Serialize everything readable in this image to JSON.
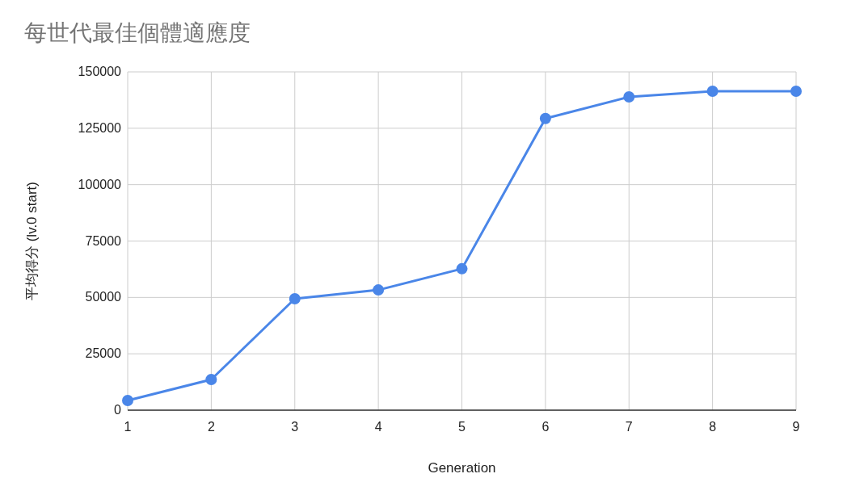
{
  "chart_data": {
    "type": "line",
    "title": "每世代最佳個體適應度",
    "xlabel": "Generation",
    "ylabel": "平均得分 (lv.0 start)",
    "x": [
      1,
      2,
      3,
      4,
      5,
      6,
      7,
      8,
      9
    ],
    "series": [
      {
        "color": "#4a86e8",
        "values": [
          4300,
          13600,
          49400,
          53300,
          62700,
          129300,
          138900,
          141400,
          141400
        ]
      }
    ],
    "xlim": [
      1,
      9
    ],
    "ylim": [
      0,
      150000
    ],
    "xticks": [
      1,
      2,
      3,
      4,
      5,
      6,
      7,
      8,
      9
    ],
    "yticks": [
      0,
      25000,
      50000,
      75000,
      100000,
      125000,
      150000
    ],
    "grid": true,
    "marker": "circle",
    "line_style": "solid"
  }
}
